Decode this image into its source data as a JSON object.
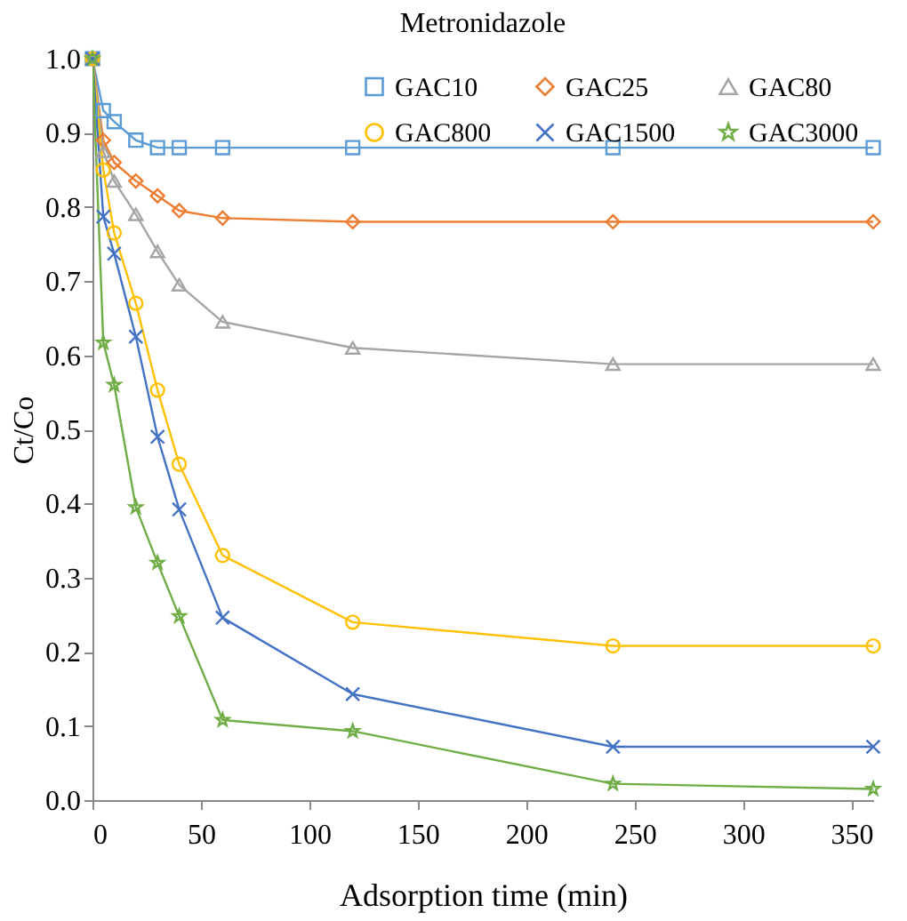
{
  "chart_data": {
    "type": "line",
    "title": "Metronidazole",
    "xlabel": "Adsorption  time (min)",
    "ylabel": "Ct/Co",
    "x": [
      0,
      5,
      10,
      20,
      30,
      40,
      60,
      120,
      240,
      360
    ],
    "xlim": [
      0,
      360
    ],
    "xticks": [
      0,
      50,
      100,
      150,
      200,
      250,
      300,
      350
    ],
    "ylim": [
      0,
      1
    ],
    "yticks": [
      {
        "value": 0,
        "label": "0.0"
      },
      0.1,
      0.2,
      0.3,
      0.4,
      0.5,
      0.6,
      0.7,
      0.8,
      0.9,
      {
        "value": 1,
        "label": "1.0"
      }
    ],
    "grid": false,
    "legend": "top right",
    "series": [
      {
        "name": "GAC10",
        "color": "#5b9bd5",
        "marker": "square",
        "values": [
          1.0,
          0.93,
          0.915,
          0.89,
          0.88,
          0.88,
          0.88,
          0.88,
          0.88,
          0.88
        ]
      },
      {
        "name": "GAC25",
        "color": "#ed7d31",
        "marker": "diamond",
        "values": [
          1.0,
          0.89,
          0.86,
          0.835,
          0.815,
          0.795,
          0.785,
          0.78,
          0.78,
          0.78
        ]
      },
      {
        "name": "GAC80",
        "color": "#a5a5a5",
        "marker": "triangle",
        "values": [
          1.0,
          0.875,
          0.835,
          0.79,
          0.74,
          0.695,
          0.645,
          0.61,
          0.588,
          0.588
        ]
      },
      {
        "name": "GAC800",
        "color": "#ffc000",
        "marker": "circle",
        "values": [
          1.0,
          0.85,
          0.765,
          0.67,
          0.553,
          0.453,
          0.33,
          0.24,
          0.208,
          0.208
        ]
      },
      {
        "name": "GAC1500",
        "color": "#4472c4",
        "marker": "cross",
        "values": [
          1.0,
          0.787,
          0.737,
          0.625,
          0.49,
          0.392,
          0.246,
          0.143,
          0.072,
          0.072
        ]
      },
      {
        "name": "GAC3000",
        "color": "#70ad47",
        "marker": "star",
        "values": [
          1.0,
          0.617,
          0.56,
          0.395,
          0.32,
          0.248,
          0.108,
          0.093,
          0.022,
          0.015
        ]
      }
    ]
  }
}
